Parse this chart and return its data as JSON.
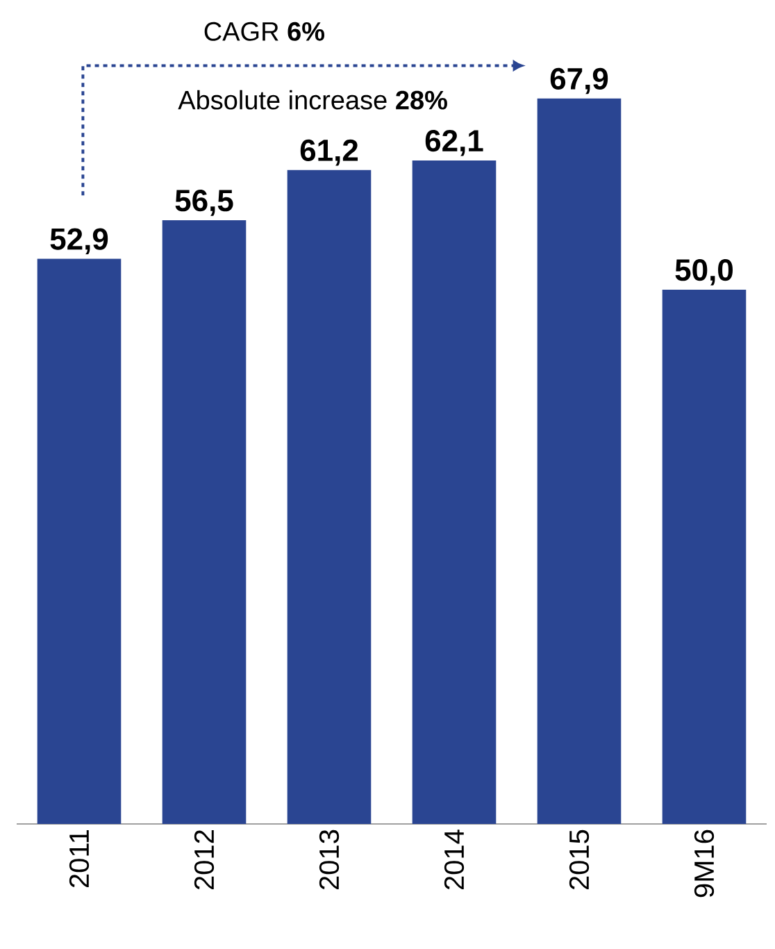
{
  "chart_data": {
    "type": "bar",
    "categories": [
      "2011",
      "2012",
      "2013",
      "2014",
      "2015",
      "9M16"
    ],
    "values": [
      52.9,
      56.5,
      61.2,
      62.1,
      67.9,
      50.0
    ],
    "value_labels": [
      "52,9",
      "56,5",
      "61,2",
      "62,1",
      "67,9",
      "50,0"
    ],
    "color": "#2a4592",
    "tick_labels": "x",
    "annotations": [
      "CAGR **6%**",
      "Absolute increase **28%**"
    ]
  }
}
